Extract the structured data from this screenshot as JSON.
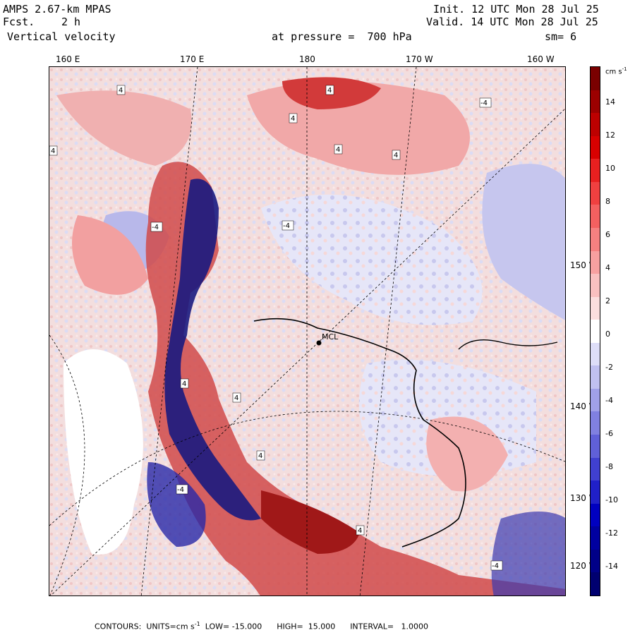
{
  "header": {
    "model": "AMPS 2.67-km MPAS",
    "forecast_label": "Fcst.",
    "forecast_value": "2 h",
    "field": "Vertical velocity",
    "init": "Init. 12 UTC Mon 28 Jul 25",
    "valid": "Valid. 14 UTC Mon 28 Jul 25",
    "pressure": "at pressure =  700 hPa",
    "smoothing": "sm= 6"
  },
  "longitude_labels": [
    "160 E",
    "170 E",
    "180",
    "170 W",
    "160 W"
  ],
  "latitude_labels": [
    "150 W",
    "140 W",
    "130 W",
    "120 W"
  ],
  "station_label": "MCL",
  "contour_labels": [
    "4",
    "-4"
  ],
  "colorbar": {
    "units_text": "cm s",
    "units_exp": "-1",
    "ticks": [
      "14",
      "12",
      "10",
      "8",
      "6",
      "4",
      "2",
      "0",
      "-2",
      "-4",
      "-6",
      "-8",
      "-10",
      "-12",
      "-14"
    ],
    "colors": [
      "#7a0000",
      "#9c0000",
      "#bd0000",
      "#d80000",
      "#e82020",
      "#f04040",
      "#f46060",
      "#f58080",
      "#f7a0a0",
      "#f9c0c0",
      "#fbdede",
      "#ffffff",
      "#dedef8",
      "#c0c0f0",
      "#a0a0e8",
      "#8080e0",
      "#6060d8",
      "#4040d0",
      "#2020c8",
      "#0000c0",
      "#0000a0",
      "#000088",
      "#000070"
    ]
  },
  "footer": {
    "contours": "CONTOURS:",
    "units_prefix": "UNITS=cm s",
    "units_exp": "-1",
    "low": "LOW= -15.000",
    "high": "HIGH=  15.000",
    "interval": "INTERVAL=   1.0000"
  },
  "colors": {
    "updraft": "#e03030",
    "downdraft": "#3030c0",
    "neutral": "#ffffff"
  }
}
